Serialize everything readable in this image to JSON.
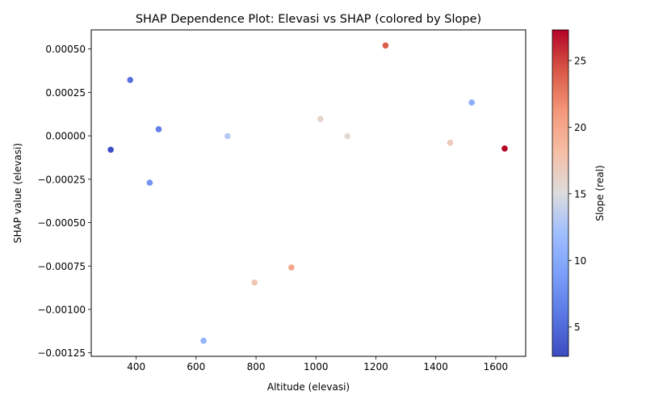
{
  "chart_data": {
    "type": "scatter",
    "title": "SHAP Dependence Plot: Elevasi vs SHAP (colored by Slope)",
    "xlabel": "Altitude (elevasi)",
    "ylabel": "SHAP value (elevasi)",
    "xlim": [
      250,
      1700
    ],
    "ylim": [
      -0.00127,
      0.00061
    ],
    "xticks": [
      400,
      600,
      800,
      1000,
      1200,
      1400,
      1600
    ],
    "yticks": [
      -0.00125,
      -0.001,
      -0.00075,
      -0.0005,
      -0.00025,
      0,
      0.00025,
      0.0005
    ],
    "ytick_labels": [
      "−0.00125",
      "−0.00100",
      "−0.00075",
      "−0.00050",
      "−0.00025",
      "0.00000",
      "0.00025",
      "0.00050"
    ],
    "colorbar": {
      "label": "Slope (real)",
      "colormap": "coolwarm",
      "range": [
        2.8,
        27.3
      ],
      "ticks": [
        5,
        10,
        15,
        20,
        25
      ]
    },
    "grid": false,
    "points": [
      {
        "x": 315,
        "y": -8e-05,
        "slope": 3.0
      },
      {
        "x": 380,
        "y": 0.000322,
        "slope": 5.5
      },
      {
        "x": 445,
        "y": -0.00027,
        "slope": 8.0
      },
      {
        "x": 475,
        "y": 3.8e-05,
        "slope": 6.5
      },
      {
        "x": 625,
        "y": -0.00118,
        "slope": 11.0
      },
      {
        "x": 705,
        "y": -2e-06,
        "slope": 13.0
      },
      {
        "x": 795,
        "y": -0.000845,
        "slope": 17.5
      },
      {
        "x": 918,
        "y": -0.000758,
        "slope": 20.0
      },
      {
        "x": 1015,
        "y": 9.7e-05,
        "slope": 16.0
      },
      {
        "x": 1105,
        "y": -2e-06,
        "slope": 15.5
      },
      {
        "x": 1232,
        "y": 0.00052,
        "slope": 24.0
      },
      {
        "x": 1448,
        "y": -4e-05,
        "slope": 17.0
      },
      {
        "x": 1520,
        "y": 0.000192,
        "slope": 10.5
      },
      {
        "x": 1630,
        "y": -7.3e-05,
        "slope": 27.3
      }
    ]
  }
}
